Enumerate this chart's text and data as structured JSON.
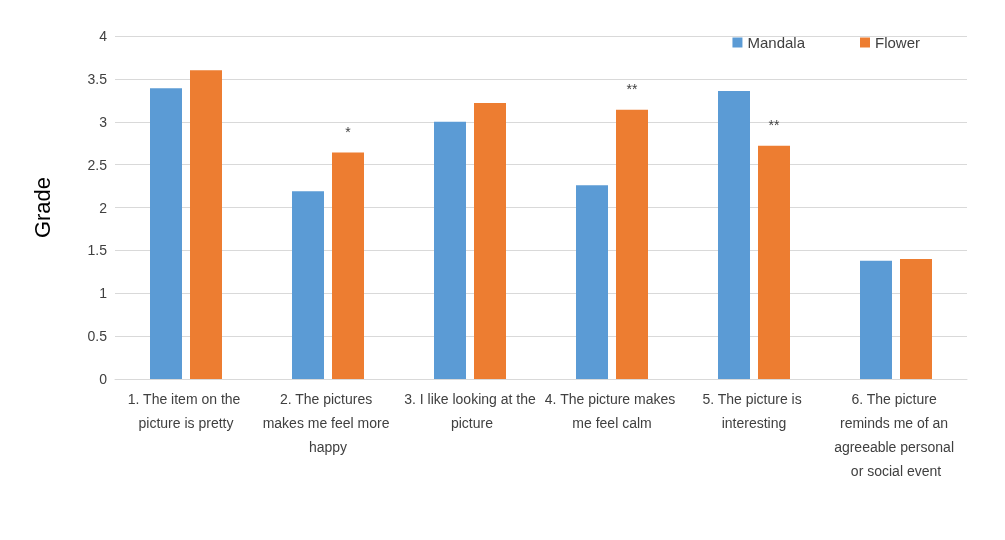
{
  "chart_data": {
    "type": "bar",
    "ylabel": "Grade",
    "categories": [
      "1. The item on the picture is pretty",
      "2. The pictures makes me feel more happy",
      "3. I like looking at the picture",
      "4. The picture makes me feel calm",
      "5. The picture is interesting",
      "6. The picture reminds me of an agreeable personal or social event"
    ],
    "series": [
      {
        "name": "Mandala",
        "color": "#5b9bd5",
        "values": [
          3.39,
          2.19,
          3.0,
          2.26,
          3.36,
          1.38
        ]
      },
      {
        "name": "Flower",
        "color": "#ed7d31",
        "values": [
          3.6,
          2.64,
          3.22,
          3.14,
          2.72,
          1.4
        ],
        "value_labels": [
          null,
          "*",
          null,
          "**",
          "**",
          null
        ]
      }
    ],
    "ylim": [
      0,
      4
    ],
    "yticks": [
      0,
      0.5,
      1,
      1.5,
      2,
      2.5,
      3,
      3.5,
      4
    ],
    "grid": "y",
    "legend": "top right"
  }
}
